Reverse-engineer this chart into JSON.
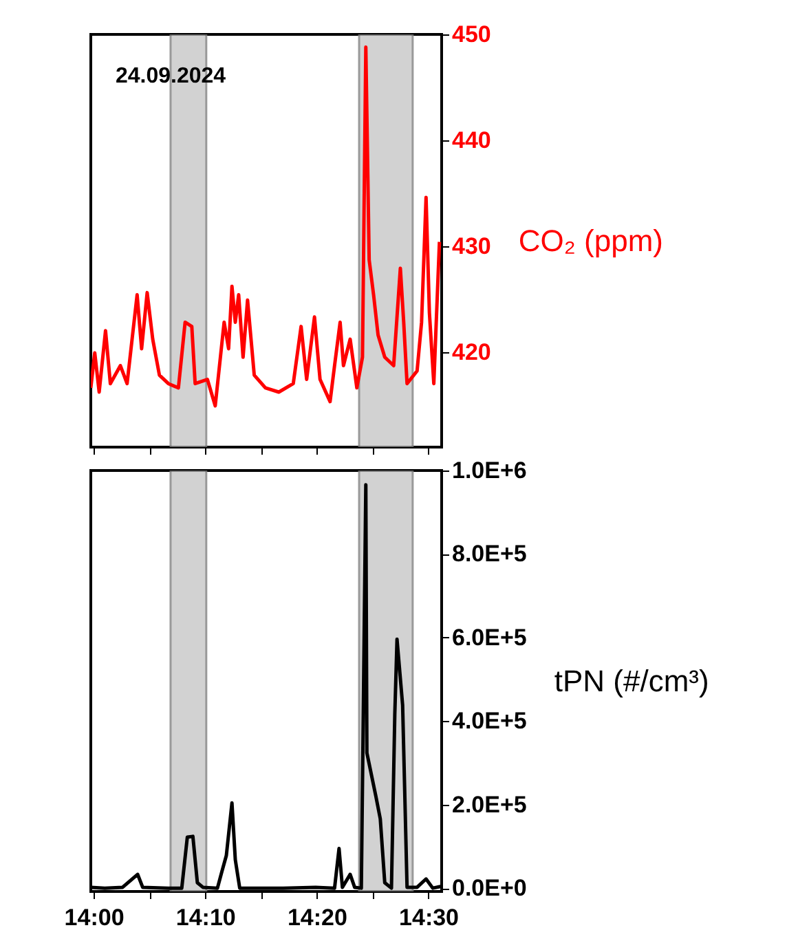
{
  "chart_data": [
    {
      "type": "line",
      "ylabel": "CO₂ (ppm)",
      "annotations": [
        "24.09.2024"
      ],
      "xlim": [
        13.9958,
        14.52
      ],
      "xticks": [
        {
          "value": 14,
          "label": null
        },
        {
          "value": 14.0833,
          "label": null
        },
        {
          "value": 14.1667,
          "label": null
        },
        {
          "value": 14.25,
          "label": null
        },
        {
          "value": 14.3333,
          "label": null
        },
        {
          "value": 14.4167,
          "label": null
        },
        {
          "value": 14.5,
          "label": null
        }
      ],
      "ylim": [
        411,
        450
      ],
      "yticks": [
        420,
        430,
        440,
        450
      ],
      "tick_labels": "y",
      "grid": false,
      "series": [
        {
          "color": "#ff0000",
          "x": [
            13.9958,
            14.0017,
            14.0083,
            14.0178,
            14.025,
            14.04,
            14.05,
            14.065,
            14.0717,
            14.08,
            14.0883,
            14.0983,
            14.1117,
            14.1267,
            14.1367,
            14.1467,
            14.1517,
            14.17,
            14.1817,
            14.195,
            14.2017,
            14.2067,
            14.2117,
            14.2167,
            14.2233,
            14.23,
            14.24,
            14.2567,
            14.2767,
            14.2983,
            14.31,
            14.3183,
            14.33,
            14.3383,
            14.3533,
            14.36,
            14.3683,
            14.3733,
            14.3833,
            14.3933,
            14.4017,
            14.4067,
            14.4117,
            14.4183,
            14.425,
            14.435,
            14.4483,
            14.4583,
            14.4633,
            14.4683,
            14.4833,
            14.49,
            14.4967,
            14.5017,
            14.5083,
            14.5167
          ],
          "values": [
            416.6,
            419.9,
            416.2,
            422.0,
            417.0,
            418.7,
            417.0,
            425.4,
            420.3,
            425.6,
            421.2,
            417.8,
            417.0,
            416.6,
            422.8,
            422.4,
            417.0,
            417.4,
            414.9,
            422.8,
            420.3,
            426.2,
            422.8,
            425.4,
            419.5,
            424.9,
            417.8,
            416.6,
            416.2,
            417.0,
            422.4,
            417.4,
            423.3,
            417.4,
            415.3,
            418.7,
            422.8,
            418.7,
            421.2,
            416.6,
            419.5,
            448.8,
            428.7,
            425.4,
            421.6,
            419.5,
            418.7,
            427.9,
            422.8,
            417.0,
            418.2,
            422.8,
            434.6,
            423.7,
            417.0,
            430.4
          ]
        }
      ],
      "bands": [
        {
          "axis": "x",
          "from": 14.115,
          "to": 14.1683,
          "color": "#c8c8c8"
        },
        {
          "axis": "x",
          "from": 14.3967,
          "to": 14.4767,
          "color": "#c8c8c8"
        }
      ]
    },
    {
      "type": "line",
      "ylabel": "tPN (#/cm³)",
      "xlim": [
        13.9958,
        14.52
      ],
      "xticks": [
        {
          "value": 14,
          "label": "14:00"
        },
        {
          "value": 14.0833,
          "label": null
        },
        {
          "value": 14.1667,
          "label": "14:10"
        },
        {
          "value": 14.25,
          "label": null
        },
        {
          "value": 14.3333,
          "label": "14:20"
        },
        {
          "value": 14.4167,
          "label": null
        },
        {
          "value": 14.5,
          "label": "14:30"
        }
      ],
      "ylim": [
        -8000,
        1000000
      ],
      "yticks": [
        {
          "value": 0,
          "label": "0.0E+0"
        },
        {
          "value": 200000,
          "label": "2.0E+5"
        },
        {
          "value": 400000,
          "label": "4.0E+5"
        },
        {
          "value": 600000,
          "label": "6.0E+5"
        },
        {
          "value": 800000,
          "label": "8.0E+5"
        },
        {
          "value": 1000000,
          "label": "1.0E+6"
        }
      ],
      "grid": false,
      "series": [
        {
          "color": "#000000",
          "x": [
            13.9958,
            14.0167,
            14.0433,
            14.0658,
            14.0733,
            14.1117,
            14.1317,
            14.14,
            14.1483,
            14.155,
            14.1633,
            14.185,
            14.1917,
            14.1983,
            14.2067,
            14.2117,
            14.2183,
            14.25,
            14.2833,
            14.3317,
            14.36,
            14.3667,
            14.3717,
            14.3833,
            14.39,
            14.4,
            14.4067,
            14.4083,
            14.4217,
            14.4283,
            14.435,
            14.445,
            14.45,
            14.4533,
            14.4617,
            14.4683,
            14.4833,
            14.4967,
            14.5067,
            14.5183
          ],
          "values": [
            2000,
            0,
            2000,
            33000,
            2000,
            0,
            0,
            122000,
            124000,
            13000,
            2000,
            0,
            40000,
            78000,
            204000,
            68000,
            0,
            0,
            0,
            2000,
            0,
            95000,
            2000,
            33000,
            2000,
            0,
            966000,
            324000,
            220000,
            166000,
            13000,
            0,
            416000,
            596000,
            438000,
            2000,
            2000,
            22000,
            0,
            4000
          ]
        }
      ],
      "bands": [
        {
          "axis": "x",
          "from": 14.115,
          "to": 14.1683,
          "color": "#c8c8c8"
        },
        {
          "axis": "x",
          "from": 14.3967,
          "to": 14.4767,
          "color": "#c8c8c8"
        }
      ]
    }
  ]
}
